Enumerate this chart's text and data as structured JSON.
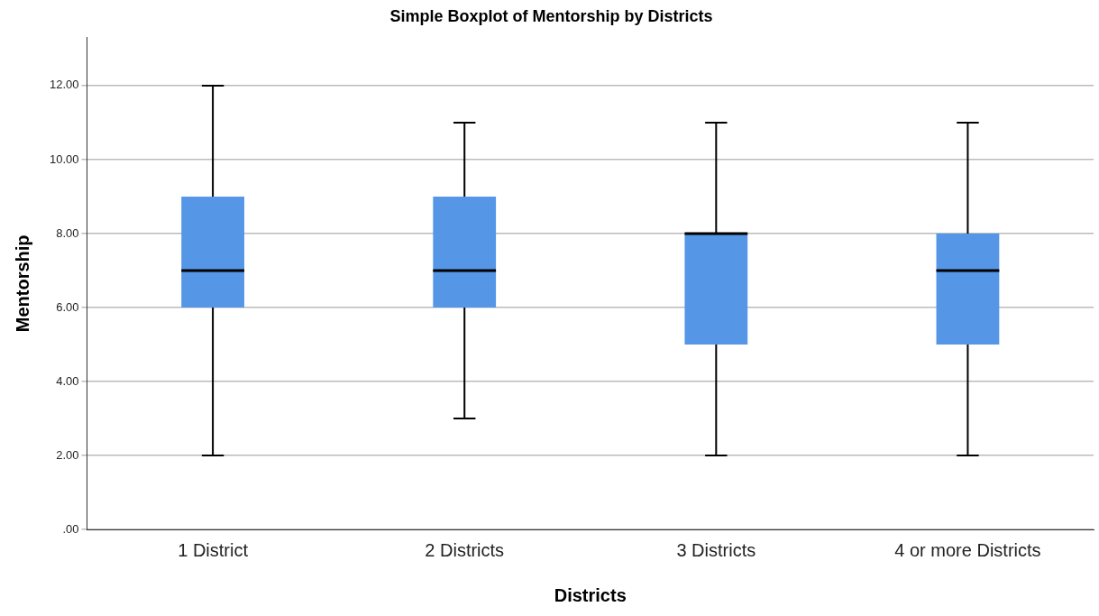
{
  "chart_data": {
    "type": "box",
    "title": "Simple Boxplot of Mentorship by Districts",
    "xlabel": "Districts",
    "ylabel": "Mentorship",
    "categories": [
      "1 District",
      "2 Districts",
      "3 Districts",
      "4 or more Districts"
    ],
    "color": "#5596e6",
    "boxes": [
      {
        "low": 2,
        "q1": 6,
        "median": 7,
        "q3": 9,
        "high": 12
      },
      {
        "low": 3,
        "q1": 6,
        "median": 7,
        "q3": 9,
        "high": 11
      },
      {
        "low": 2,
        "q1": 5,
        "median": 8,
        "q3": 8,
        "high": 11
      },
      {
        "low": 2,
        "q1": 5,
        "median": 7,
        "q3": 8,
        "high": 11
      }
    ],
    "ylim": [
      0,
      13.3
    ],
    "yticks": [
      {
        "value": 0,
        "label": ".00"
      },
      {
        "value": 2,
        "label": "2.00"
      },
      {
        "value": 4,
        "label": "4.00"
      },
      {
        "value": 6,
        "label": "6.00"
      },
      {
        "value": 8,
        "label": "8.00"
      },
      {
        "value": 10,
        "label": "10.00"
      },
      {
        "value": 12,
        "label": "12.00"
      }
    ],
    "grid": "y"
  }
}
